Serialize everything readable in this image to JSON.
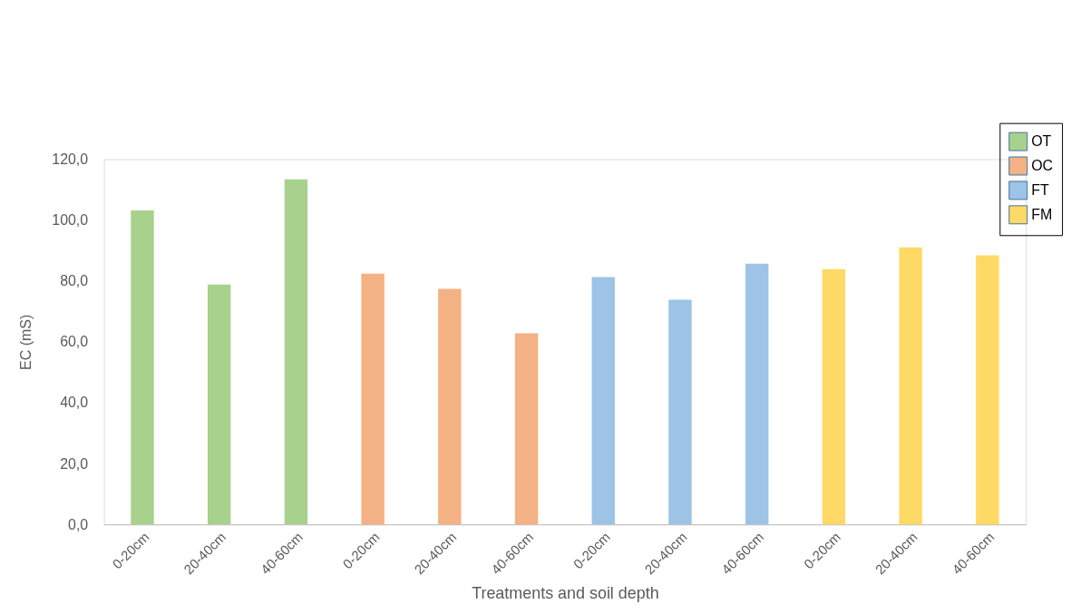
{
  "chart_data": {
    "type": "bar",
    "xlabel": "Treatments and soil depth",
    "ylabel": "EC (mS)",
    "categories": [
      "0-20cm",
      "20-40cm",
      "40-60cm",
      "0-20cm",
      "20-40cm",
      "40-60cm",
      "0-20cm",
      "20-40cm",
      "40-60cm",
      "0-20cm",
      "20-40cm",
      "40-60cm"
    ],
    "series": [
      {
        "name": "OT",
        "color": "#a9d18e",
        "values": [
          103.2,
          78.8,
          113.4,
          null,
          null,
          null,
          null,
          null,
          null,
          null,
          null,
          null
        ]
      },
      {
        "name": "OC",
        "color": "#f4b183",
        "values": [
          null,
          null,
          null,
          82.4,
          77.4,
          62.8,
          null,
          null,
          null,
          null,
          null,
          null
        ]
      },
      {
        "name": "FT",
        "color": "#9dc3e6",
        "values": [
          null,
          null,
          null,
          null,
          null,
          null,
          81.3,
          73.8,
          85.7,
          null,
          null,
          null
        ]
      },
      {
        "name": "FM",
        "color": "#ffd966",
        "values": [
          null,
          null,
          null,
          null,
          null,
          null,
          null,
          null,
          null,
          83.9,
          91.0,
          88.4
        ]
      }
    ],
    "ylim": [
      0,
      120
    ],
    "yticks": [
      {
        "value": 0,
        "label": "0,0"
      },
      {
        "value": 20,
        "label": "20,0"
      },
      {
        "value": 40,
        "label": "40,0"
      },
      {
        "value": 60,
        "label": "60,0"
      },
      {
        "value": 80,
        "label": "80,0"
      },
      {
        "value": 100,
        "label": "100,0"
      },
      {
        "value": 120,
        "label": "120,0"
      }
    ],
    "grid": false,
    "legend": "top right"
  }
}
